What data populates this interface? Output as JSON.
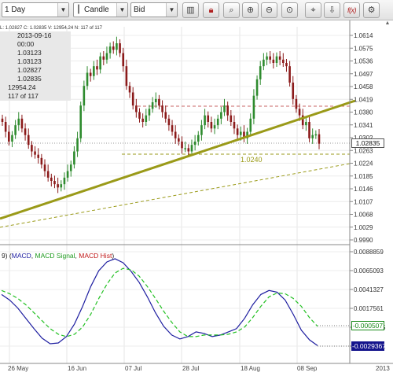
{
  "toolbar": {
    "timeframe": "1 Day",
    "chart_type": "Candle",
    "price_side": "Bid"
  },
  "info_panel": {
    "ohlc_line": "L: 1.02827  C: 1.02835  V: 12954.24  N: 117 of 117",
    "date": "2013-09-16",
    "time": "00:00",
    "open": "1.03123",
    "high": "1.03123",
    "low": "1.02827",
    "close": "1.02835",
    "volume": "12954.24",
    "count": "117 of 117"
  },
  "price_axis": {
    "labels": [
      "1.0614",
      "1.0575",
      "1.0536",
      "1.0497",
      "1.0458",
      "1.0419",
      "1.0380",
      "1.0341",
      "1.0302",
      "1.0263",
      "1.0224",
      "1.0185",
      "1.0146",
      "1.0107",
      "1.0068",
      "1.0029",
      "0.9990"
    ],
    "current_price": "1.02835"
  },
  "horizontal_level": {
    "label": "1.0240"
  },
  "macd": {
    "title_prefix": "9) (",
    "name_macd": "MACD",
    "sep1": ", ",
    "name_signal": "MACD Signal",
    "sep2": ", ",
    "name_hist": "MACD Hist",
    "title_suffix": ")",
    "axis_labels": [
      "0.0088859",
      "0.0065093",
      "0.0041327",
      "0.0017561",
      "-0.0006205",
      "-0.0029971"
    ],
    "signal_value": "-0.000507",
    "macd_value": "-0.0029367"
  },
  "time_axis": {
    "labels": [
      "26 May",
      "16 Jun",
      "07 Jul",
      "28 Jul",
      "18 Aug",
      "08 Sep",
      "2013"
    ]
  },
  "colors": {
    "bull": "#2e8b2e",
    "bear": "#8b1a1a",
    "trendline": "#9a9a18",
    "macd_line": "#1e1ea0",
    "signal_line": "#22c022",
    "resistance": "#c86464"
  },
  "chart_data": [
    {
      "type": "candlestick",
      "ylim": [
        0.999,
        1.0614
      ],
      "x": [
        "26 May",
        "16 Jun",
        "07 Jul",
        "28 Jul",
        "18 Aug",
        "08 Sep"
      ],
      "close_profile": [
        1.035,
        1.032,
        1.029,
        1.031,
        1.034,
        1.036,
        1.033,
        1.031,
        1.028,
        1.026,
        1.025,
        1.024,
        1.022,
        1.02,
        1.018,
        1.017,
        1.016,
        1.015,
        1.016,
        1.018,
        1.02,
        1.022,
        1.026,
        1.03,
        1.04,
        1.046,
        1.05,
        1.049,
        1.052,
        1.051,
        1.055,
        1.054,
        1.056,
        1.058,
        1.057,
        1.059,
        1.056,
        1.052,
        1.046,
        1.044,
        1.04,
        1.038,
        1.036,
        1.035,
        1.037,
        1.039,
        1.041,
        1.042,
        1.04,
        1.038,
        1.036,
        1.034,
        1.032,
        1.03,
        1.029,
        1.027,
        1.027,
        1.026,
        1.028,
        1.029,
        1.031,
        1.034,
        1.037,
        1.035,
        1.033,
        1.034,
        1.036,
        1.038,
        1.04,
        1.037,
        1.035,
        1.033,
        1.031,
        1.032,
        1.03,
        1.032,
        1.036,
        1.043,
        1.048,
        1.052,
        1.054,
        1.055,
        1.054,
        1.053,
        1.055,
        1.054,
        1.053,
        1.052,
        1.047,
        1.042,
        1.039,
        1.037,
        1.034,
        1.035,
        1.03,
        1.031,
        1.03123,
        1.02835
      ]
    },
    {
      "type": "line",
      "title": "MACD",
      "ylim": [
        -0.0035,
        0.0088859
      ],
      "series": [
        {
          "name": "MACD",
          "values": [
            0.0035,
            0.0028,
            0.0018,
            0.0005,
            -0.0008,
            -0.002,
            -0.0027,
            -0.0026,
            -0.0018,
            -0.0002,
            0.002,
            0.0045,
            0.0065,
            0.0076,
            0.008,
            0.0075,
            0.0064,
            0.005,
            0.0032,
            0.0012,
            -0.0005,
            -0.0016,
            -0.0021,
            -0.0018,
            -0.0012,
            -0.0014,
            -0.0018,
            -0.0016,
            -0.0012,
            -0.0008,
            0.0005,
            0.0022,
            0.0035,
            0.004,
            0.0038,
            0.0028,
            0.001,
            -0.001,
            -0.0022,
            -0.0029367
          ]
        },
        {
          "name": "MACD Signal",
          "values": [
            0.004,
            0.0036,
            0.003,
            0.0022,
            0.0012,
            0.0002,
            -0.0008,
            -0.0015,
            -0.0018,
            -0.0015,
            -0.0006,
            0.001,
            0.003,
            0.0048,
            0.0062,
            0.0068,
            0.0066,
            0.0058,
            0.0045,
            0.003,
            0.0014,
            0.0,
            -0.0012,
            -0.0018,
            -0.0018,
            -0.0016,
            -0.0016,
            -0.0016,
            -0.0015,
            -0.0012,
            -0.0006,
            0.0006,
            0.002,
            0.0032,
            0.0037,
            0.0036,
            0.003,
            0.002,
            0.0006,
            -0.000507
          ]
        }
      ]
    }
  ]
}
